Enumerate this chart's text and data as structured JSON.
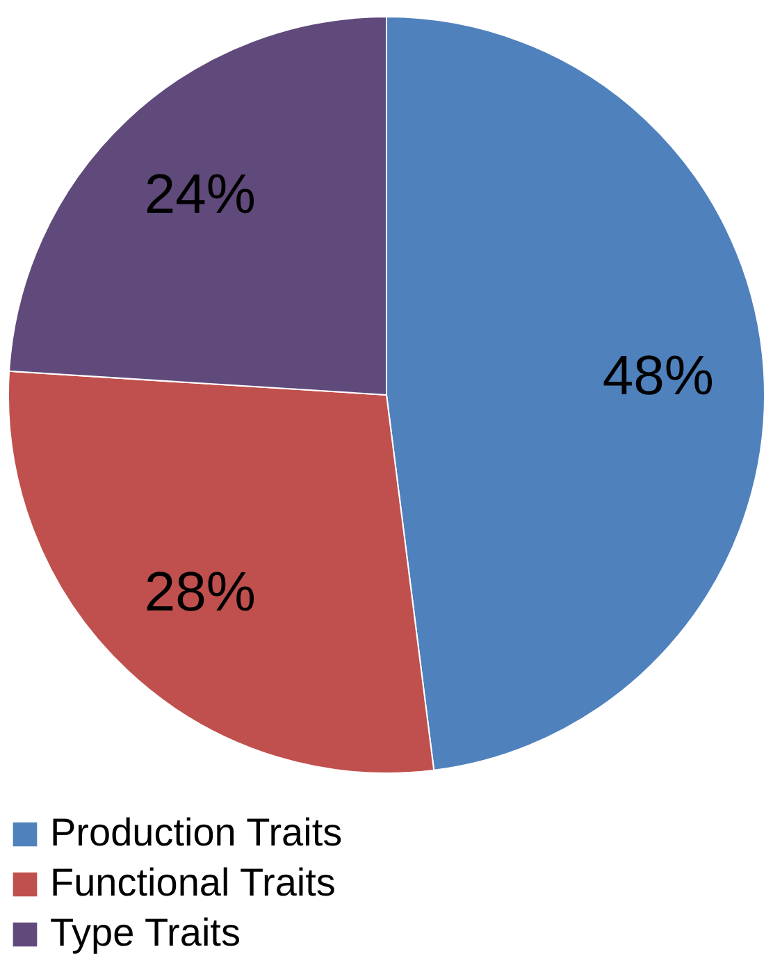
{
  "chart_data": {
    "type": "pie",
    "categories": [
      "Production Traits",
      "Functional Traits",
      "Type Traits"
    ],
    "values": [
      48,
      28,
      24
    ],
    "colors": [
      "#4f81bd",
      "#c0504d",
      "#604a7b"
    ],
    "value_labels": [
      "48%",
      "28%",
      "24%"
    ],
    "legend": "bottom"
  }
}
